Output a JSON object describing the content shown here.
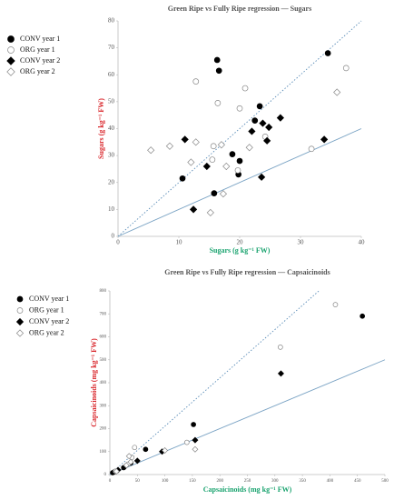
{
  "chart_data": [
    {
      "type": "scatter",
      "title": "Green Ripe vs Fully Ripe regression — Sugars",
      "x_label": "Sugars (g kg⁻¹ FW)",
      "y_label": "Sugars (g kg⁻¹ FW)",
      "x_label_color": "#1aa36f",
      "y_label_color": "#d9262b",
      "xlim": [
        0,
        40
      ],
      "ylim": [
        0,
        80
      ],
      "xticks": [
        0,
        10,
        20,
        30,
        40
      ],
      "yticks": [
        0,
        10,
        20,
        30,
        40,
        50,
        60,
        70,
        80
      ],
      "legend": "left",
      "series": [
        {
          "name": "CONV year 1",
          "marker": "circle",
          "filled": true,
          "color": "#000000",
          "x": [
            16.3,
            16.6,
            34.5,
            23.3,
            22.5,
            18.8,
            20,
            19.8,
            10.6,
            15.8
          ],
          "y": [
            65.5,
            61.5,
            68,
            48.3,
            43,
            30.5,
            28,
            23,
            21.5,
            16
          ]
        },
        {
          "name": "ORG year 1",
          "marker": "circle",
          "filled": false,
          "color": "#888888",
          "x": [
            12.8,
            16.4,
            20.9,
            20,
            15.7,
            24.2,
            37.5,
            31.8,
            15.5,
            19.7
          ],
          "y": [
            57.5,
            49.5,
            55,
            47.5,
            33.5,
            37,
            62.5,
            32.5,
            28.5,
            24.5
          ]
        },
        {
          "name": "CONV year 2",
          "marker": "diamond",
          "filled": true,
          "color": "#000000",
          "x": [
            11,
            22,
            24.8,
            26.7,
            14.6,
            12.4,
            23.6,
            33.9,
            24.5,
            23.8
          ],
          "y": [
            36,
            39,
            40.5,
            44,
            26,
            10,
            22,
            36,
            35.5,
            42
          ]
        },
        {
          "name": "ORG year 2",
          "marker": "diamond",
          "filled": false,
          "color": "#888888",
          "x": [
            5.4,
            8.5,
            12,
            12.8,
            15.2,
            17.3,
            17.8,
            21.6,
            36,
            17
          ],
          "y": [
            32,
            33.5,
            27.5,
            35,
            8.8,
            15.8,
            26,
            33,
            53.5,
            34
          ]
        }
      ],
      "reference_lines": [
        {
          "style": "dotted",
          "color": "#5b8db8",
          "x": [
            0,
            40
          ],
          "y": [
            0,
            80
          ]
        },
        {
          "style": "solid",
          "color": "#7aa3c4",
          "x": [
            0,
            40
          ],
          "y": [
            0,
            40
          ]
        }
      ]
    },
    {
      "type": "scatter",
      "title": "Green Ripe vs Fully Ripe regression — Capsaicinoids",
      "x_label": "Capsaicinoids (mg kg⁻¹ FW)",
      "y_label": "Capsaicinoids (mg kg⁻¹ FW)",
      "x_label_color": "#1aa36f",
      "y_label_color": "#d9262b",
      "xlim": [
        0,
        500
      ],
      "ylim": [
        0,
        800
      ],
      "xticks": [
        0,
        50,
        100,
        150,
        200,
        250,
        300,
        350,
        400,
        450,
        500
      ],
      "yticks": [
        0,
        100,
        200,
        300,
        400,
        500,
        600,
        700,
        800
      ],
      "legend": "left",
      "series": [
        {
          "name": "CONV year 1",
          "marker": "circle",
          "filled": true,
          "color": "#000000",
          "x": [
            5,
            8,
            25,
            65,
            152,
            459,
            38
          ],
          "y": [
            8,
            12,
            30,
            110,
            218,
            690,
            50
          ]
        },
        {
          "name": "ORG year 1",
          "marker": "circle",
          "filled": false,
          "color": "#888888",
          "x": [
            10,
            40,
            45,
            140,
            310,
            410,
            33
          ],
          "y": [
            15,
            75,
            118,
            140,
            555,
            740,
            45
          ]
        },
        {
          "name": "CONV year 2",
          "marker": "diamond",
          "filled": true,
          "color": "#000000",
          "x": [
            15,
            28,
            50,
            95,
            155,
            311
          ],
          "y": [
            20,
            35,
            60,
            100,
            150,
            440
          ]
        },
        {
          "name": "ORG year 2",
          "marker": "diamond",
          "filled": false,
          "color": "#888888",
          "x": [
            12,
            30,
            35,
            100,
            155,
            38
          ],
          "y": [
            14,
            40,
            80,
            105,
            110,
            55
          ]
        }
      ],
      "reference_lines": [
        {
          "style": "dotted",
          "color": "#5b8db8",
          "x": [
            0,
            380
          ],
          "y": [
            0,
            800
          ]
        },
        {
          "style": "solid",
          "color": "#7aa3c4",
          "x": [
            0,
            500
          ],
          "y": [
            0,
            500
          ]
        }
      ]
    }
  ]
}
